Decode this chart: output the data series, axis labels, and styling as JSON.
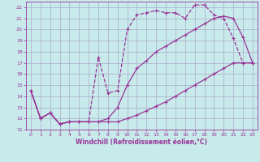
{
  "title": "",
  "xlabel": "Windchill (Refroidissement éolien,°C)",
  "bg_color": "#c8eaea",
  "grid_color": "#aaaacc",
  "line_color": "#993399",
  "xlim": [
    -0.5,
    23.5
  ],
  "ylim": [
    11,
    22.5
  ],
  "xticks": [
    0,
    1,
    2,
    3,
    4,
    5,
    6,
    7,
    8,
    9,
    10,
    11,
    12,
    13,
    14,
    15,
    16,
    17,
    18,
    19,
    20,
    21,
    22,
    23
  ],
  "yticks": [
    11,
    12,
    13,
    14,
    15,
    16,
    17,
    18,
    19,
    20,
    21,
    22
  ],
  "curve1_x": [
    0,
    1,
    2,
    3,
    4,
    5,
    6,
    7,
    8,
    9,
    10,
    11,
    12,
    13,
    14,
    15,
    16,
    17,
    18,
    19,
    20,
    21,
    22,
    23
  ],
  "curve1_y": [
    14.5,
    12.0,
    12.5,
    11.5,
    11.7,
    11.7,
    11.7,
    11.7,
    11.7,
    11.7,
    12.0,
    12.3,
    12.7,
    13.1,
    13.5,
    14.0,
    14.5,
    15.0,
    15.5,
    16.0,
    16.5,
    17.0,
    17.0,
    17.0
  ],
  "curve2_x": [
    0,
    1,
    2,
    3,
    4,
    5,
    6,
    7,
    8,
    9,
    10,
    11,
    12,
    13,
    14,
    15,
    16,
    17,
    18,
    19,
    20,
    21,
    22,
    23
  ],
  "curve2_y": [
    14.5,
    12.0,
    12.5,
    11.5,
    11.7,
    11.7,
    11.7,
    17.5,
    14.3,
    14.5,
    20.0,
    21.3,
    21.5,
    21.7,
    21.5,
    21.5,
    21.0,
    22.2,
    22.2,
    21.3,
    21.0,
    19.2,
    17.0,
    17.0
  ],
  "curve3_x": [
    0,
    1,
    2,
    3,
    4,
    5,
    6,
    7,
    8,
    9,
    10,
    11,
    12,
    13,
    14,
    15,
    16,
    17,
    18,
    19,
    20,
    21,
    22,
    23
  ],
  "curve3_y": [
    14.5,
    12.0,
    12.5,
    11.5,
    11.7,
    11.7,
    11.7,
    11.7,
    12.0,
    13.0,
    15.0,
    16.5,
    17.2,
    18.0,
    18.5,
    19.0,
    19.5,
    20.0,
    20.5,
    21.0,
    21.2,
    21.0,
    19.3,
    17.0
  ]
}
